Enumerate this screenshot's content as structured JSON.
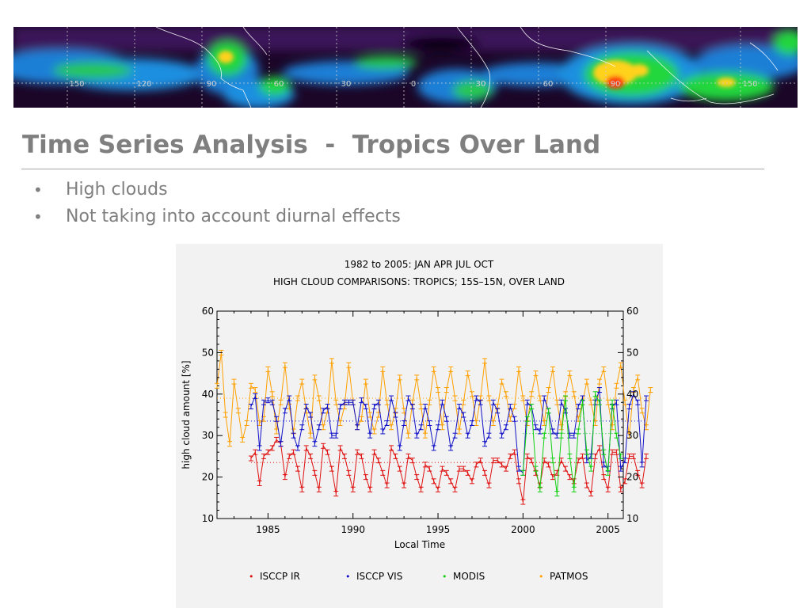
{
  "slide": {
    "title": "Time Series Analysis  -  Tropics Over Land",
    "bullets": [
      "High clouds",
      "Not taking into account diurnal effects"
    ]
  },
  "banner": {
    "longitude_labels": [
      "150",
      "120",
      "90",
      "60",
      "30",
      "0",
      "30",
      "60",
      "90",
      "150"
    ],
    "colors": {
      "background": "#0b0214",
      "dark": "#3a1255",
      "mid": "#1f7fd6",
      "high": "#22d63c",
      "peak": "#ffd21a",
      "max": "#ff3a0a"
    }
  },
  "chart_data": {
    "type": "line",
    "title": "1982 to 2005: JAN APR JUL OCT",
    "subtitle": "HIGH CLOUD COMPARISONS: TROPICS; 15S–15N, OVER LAND",
    "xlabel": "Local Time",
    "ylabel": "high cloud amount [%]",
    "xlim": [
      1982.0,
      2005.9
    ],
    "ylim": [
      10,
      60
    ],
    "xticks": [
      1985,
      1990,
      1995,
      2000,
      2005
    ],
    "xtick_labels": [
      "1985",
      "1990",
      "1995",
      "2000",
      "2005"
    ],
    "yticks": [
      10,
      20,
      30,
      40,
      50,
      60
    ],
    "ytick_labels": [
      "10",
      "20",
      "30",
      "40",
      "50",
      "60"
    ],
    "grid": false,
    "legend_position": "bottom",
    "series": [
      {
        "name": "ISCCP IR",
        "color": "#e01010",
        "mean": 23.5,
        "start": 1984.0,
        "values": [
          24.5,
          26,
          18.5,
          25,
          26,
          27,
          29,
          28,
          20,
          25,
          26,
          22,
          17,
          27,
          25,
          21,
          17,
          27.5,
          26,
          22,
          16,
          27,
          25,
          21,
          17,
          26,
          25,
          20,
          17,
          26,
          24,
          21,
          18,
          27,
          25,
          22,
          18,
          25,
          24,
          20,
          17,
          23,
          22,
          19,
          17,
          22,
          21,
          19,
          17,
          22,
          22,
          21,
          19,
          23,
          24,
          21,
          18,
          24,
          24,
          23,
          22,
          25,
          26,
          19,
          14,
          25,
          24,
          21,
          18,
          24,
          23,
          20,
          21,
          24,
          22,
          20,
          19,
          24,
          25,
          18,
          16,
          25,
          27,
          20,
          17,
          26,
          26,
          17,
          19,
          25,
          25,
          21,
          18,
          25
        ]
      },
      {
        "name": "ISCCP VIS",
        "color": "#1010c8",
        "mean": 33.5,
        "start": 1984.0,
        "values": [
          37,
          39.5,
          27,
          38,
          38.5,
          38,
          34,
          28,
          36,
          39,
          30,
          27,
          32,
          37,
          35,
          28,
          32,
          36,
          37,
          30,
          30,
          37,
          38,
          38,
          38,
          32,
          38.5,
          37,
          30,
          37,
          38,
          31,
          33,
          39,
          35,
          27,
          33,
          39,
          37,
          30,
          32,
          37,
          33,
          27,
          32,
          38,
          34,
          27,
          30,
          37,
          35,
          30,
          33,
          39,
          38,
          28,
          30,
          38,
          36,
          30,
          32,
          37,
          34,
          22,
          21,
          38,
          37,
          32,
          31,
          39,
          36,
          31,
          30,
          38,
          36,
          30,
          30,
          37,
          39,
          24,
          25,
          38,
          41,
          23,
          22,
          37,
          38,
          22,
          24,
          37,
          40,
          38,
          23,
          39
        ]
      },
      {
        "name": "MODIS",
        "color": "#10d010",
        "mean": 30.5,
        "start": 2000.0,
        "values": [
          21,
          34,
          37,
          22,
          17,
          30,
          36,
          24,
          16,
          30,
          39,
          25,
          17,
          31,
          38,
          26,
          22,
          40,
          38,
          26,
          21,
          38,
          30,
          25
        ]
      },
      {
        "name": "PATMOS",
        "color": "#ffa000",
        "mean": 39.0,
        "start": 1982.0,
        "values": [
          42,
          50,
          35,
          28,
          43,
          36,
          29,
          33,
          42,
          41,
          33,
          34,
          46,
          40,
          31,
          38,
          47,
          37,
          31,
          39,
          43,
          36,
          30,
          44,
          39,
          32,
          36,
          48,
          38,
          33,
          37,
          47,
          38,
          32,
          34,
          43,
          35,
          31,
          35,
          46,
          38,
          32,
          36,
          44,
          36,
          30,
          38,
          44,
          37,
          30,
          38,
          46,
          41,
          32,
          41,
          46,
          39,
          31,
          38,
          45,
          40,
          33,
          39,
          48,
          39,
          33,
          37,
          43,
          40,
          34,
          37,
          46,
          39,
          33,
          40,
          45,
          39,
          33,
          41,
          46,
          38,
          32,
          40,
          45,
          40,
          34,
          38,
          43,
          38,
          33,
          43,
          46,
          38,
          32,
          42,
          47,
          38,
          30,
          41,
          44,
          36,
          32,
          41
        ]
      }
    ],
    "markers": {
      "legend_dot": "•"
    }
  }
}
